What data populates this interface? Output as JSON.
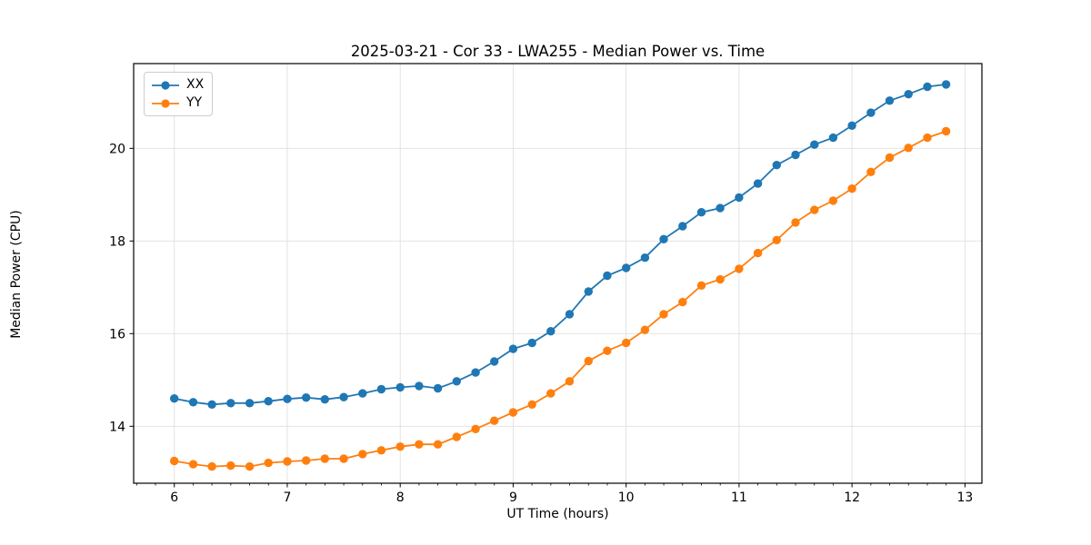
{
  "figure": {
    "title": "2025-03-21 - Cor 33 - LWA255 - Median Power vs. Time",
    "xlabel": "UT Time (hours)",
    "ylabel": "Median Power (CPU)"
  },
  "legend": {
    "position": "upper left",
    "entries": [
      "XX",
      "YY"
    ]
  },
  "chart_data": {
    "type": "line",
    "title": "2025-03-21 - Cor 33 - LWA255 - Median Power vs. Time",
    "xlabel": "UT Time (hours)",
    "ylabel": "Median Power (CPU)",
    "xlim": [
      5.64,
      13.15
    ],
    "ylim": [
      12.77,
      21.83
    ],
    "x_ticks": [
      6,
      7,
      8,
      9,
      10,
      11,
      12,
      13
    ],
    "y_ticks": [
      14,
      16,
      18,
      20
    ],
    "x_minor_step": 0.1667,
    "grid": true,
    "grid_color": "#e0e0e0",
    "legend_position": "upper left",
    "marker": "o",
    "x": [
      6.0,
      6.167,
      6.333,
      6.5,
      6.667,
      6.833,
      7.0,
      7.167,
      7.333,
      7.5,
      7.667,
      7.833,
      8.0,
      8.167,
      8.333,
      8.5,
      8.667,
      8.833,
      9.0,
      9.167,
      9.333,
      9.5,
      9.667,
      9.833,
      10.0,
      10.167,
      10.333,
      10.5,
      10.667,
      10.833,
      11.0,
      11.167,
      11.333,
      11.5,
      11.667,
      11.833,
      12.0,
      12.167,
      12.333,
      12.5,
      12.667,
      12.833
    ],
    "series": [
      {
        "name": "XX",
        "color": "#1f77b4",
        "values": [
          14.6,
          14.52,
          14.47,
          14.5,
          14.5,
          14.54,
          14.59,
          14.62,
          14.58,
          14.63,
          14.71,
          14.8,
          14.84,
          14.87,
          14.82,
          14.97,
          15.16,
          15.4,
          15.67,
          15.8,
          16.05,
          16.42,
          16.91,
          17.25,
          17.42,
          17.64,
          18.04,
          18.32,
          18.62,
          18.71,
          18.94,
          19.24,
          19.64,
          19.86,
          20.08,
          20.23,
          20.49,
          20.77,
          21.03,
          21.17,
          21.33,
          21.38
        ]
      },
      {
        "name": "YY",
        "color": "#ff7f0e",
        "values": [
          13.25,
          13.18,
          13.13,
          13.15,
          13.13,
          13.21,
          13.24,
          13.26,
          13.3,
          13.3,
          13.4,
          13.48,
          13.56,
          13.61,
          13.61,
          13.77,
          13.94,
          14.12,
          14.3,
          14.47,
          14.71,
          14.97,
          15.41,
          15.63,
          15.8,
          16.08,
          16.42,
          16.68,
          17.04,
          17.17,
          17.4,
          17.74,
          18.02,
          18.4,
          18.67,
          18.87,
          19.13,
          19.49,
          19.8,
          20.01,
          20.23,
          20.37
        ]
      }
    ]
  }
}
